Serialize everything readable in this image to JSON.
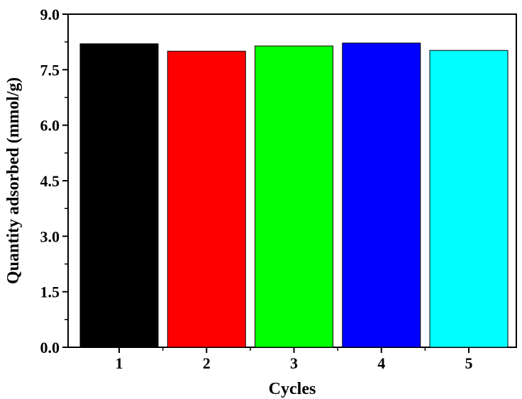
{
  "chart_data": {
    "type": "bar",
    "xlabel": "Cycles",
    "ylabel": "Quantity adsorbed (mmol/g)",
    "categories": [
      "1",
      "2",
      "3",
      "4",
      "5"
    ],
    "values": [
      8.2,
      8.0,
      8.14,
      8.22,
      8.02
    ],
    "bar_colors": [
      "#000000",
      "#ff0000",
      "#00ff00",
      "#0000ff",
      "#00ffff"
    ],
    "ylim": [
      0,
      9
    ],
    "yticks": [
      "0.0",
      "1.5",
      "3.0",
      "4.5",
      "6.0",
      "7.5",
      "9.0"
    ],
    "grid": false,
    "legend": "none"
  }
}
